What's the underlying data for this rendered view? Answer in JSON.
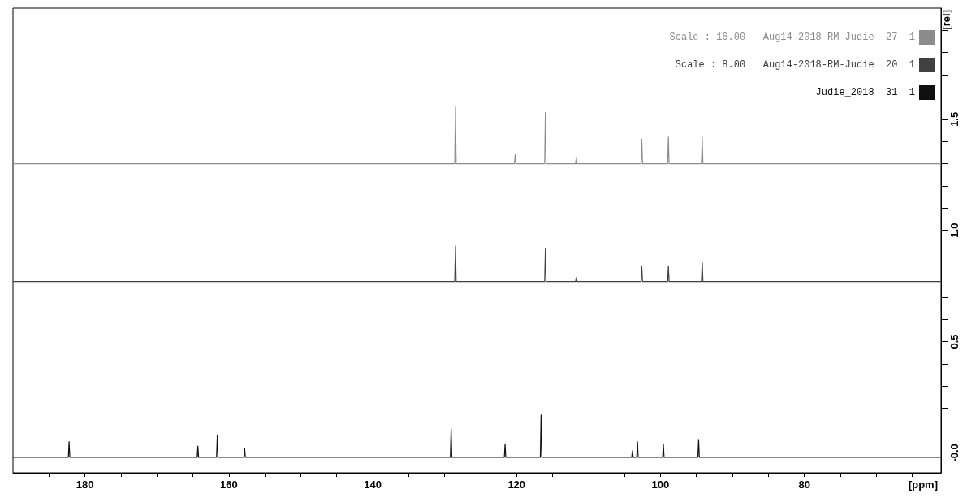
{
  "chart_data": {
    "type": "line",
    "xlabel": "[ppm]",
    "ylabel": "[rel]",
    "xlim": [
      190,
      61
    ],
    "ylim": [
      -0.09,
      2.0
    ],
    "xticks": [
      {
        "value": 185,
        "label": null
      },
      180,
      {
        "value": 175,
        "label": null
      },
      {
        "value": 170,
        "label": null
      },
      {
        "value": 165,
        "label": null
      },
      160,
      {
        "value": 155,
        "label": null
      },
      {
        "value": 150,
        "label": null
      },
      {
        "value": 145,
        "label": null
      },
      140,
      {
        "value": 135,
        "label": null
      },
      {
        "value": 130,
        "label": null
      },
      {
        "value": 125,
        "label": null
      },
      120,
      {
        "value": 115,
        "label": null
      },
      {
        "value": 110,
        "label": null
      },
      {
        "value": 105,
        "label": null
      },
      100,
      {
        "value": 95,
        "label": null
      },
      {
        "value": 90,
        "label": null
      },
      {
        "value": 85,
        "label": null
      },
      80,
      {
        "value": 75,
        "label": null
      },
      {
        "value": 70,
        "label": null
      },
      {
        "value": 65,
        "label": null
      }
    ],
    "yticks": [
      {
        "value": 0,
        "label": "-0.0"
      },
      {
        "value": 0.1,
        "label": null
      },
      {
        "value": 0.2,
        "label": null
      },
      {
        "value": 0.3,
        "label": null
      },
      {
        "value": 0.4,
        "label": null
      },
      0.5,
      {
        "value": 0.6,
        "label": null
      },
      {
        "value": 0.7,
        "label": null
      },
      {
        "value": 0.8,
        "label": null
      },
      {
        "value": 0.9,
        "label": null
      },
      {
        "value": 1,
        "label": "1.0"
      },
      {
        "value": 1.1,
        "label": null
      },
      {
        "value": 1.2,
        "label": null
      },
      {
        "value": 1.3,
        "label": null
      },
      {
        "value": 1.4,
        "label": null
      },
      1.5,
      {
        "value": 1.6,
        "label": null
      },
      {
        "value": 1.7,
        "label": null
      },
      {
        "value": 1.8,
        "label": null
      },
      {
        "value": 1.9,
        "label": null
      }
    ],
    "legend": "top right",
    "marker": "none",
    "line_style": "solid",
    "grid": false,
    "series": [
      {
        "name": "Scale : 16.00   Aug14-2018-RM-Judie  27  1",
        "color": "#8c8c8c",
        "x": [
          190,
          128.6,
          128.5,
          128.4,
          120.3,
          120.2,
          120.1,
          116.1,
          116.0,
          115.9,
          111.8,
          111.7,
          111.6,
          102.7,
          102.6,
          102.5,
          99.0,
          98.9,
          98.8,
          94.3,
          94.2,
          94.1,
          61
        ],
        "values": [
          1.3,
          1.3,
          1.56,
          1.3,
          1.3,
          1.34,
          1.3,
          1.3,
          1.53,
          1.3,
          1.3,
          1.33,
          1.3,
          1.3,
          1.41,
          1.3,
          1.3,
          1.42,
          1.3,
          1.3,
          1.42,
          1.3,
          1.3
        ]
      },
      {
        "name": "Scale : 8.00   Aug14-2018-RM-Judie  20  1",
        "color": "#404040",
        "x": [
          190,
          128.6,
          128.5,
          128.4,
          116.1,
          116.0,
          115.9,
          111.8,
          111.7,
          111.6,
          102.7,
          102.6,
          102.5,
          99.0,
          98.9,
          98.8,
          94.3,
          94.2,
          94.1,
          61
        ],
        "values": [
          0.77,
          0.77,
          0.93,
          0.77,
          0.77,
          0.92,
          0.77,
          0.77,
          0.79,
          0.77,
          0.77,
          0.84,
          0.77,
          0.77,
          0.84,
          0.77,
          0.77,
          0.86,
          0.77,
          0.77
        ]
      },
      {
        "name": "Judie_2018  31  1",
        "color": "#101010",
        "x": [
          190,
          182.3,
          182.2,
          182.1,
          164.4,
          164.3,
          164.2,
          161.7,
          161.6,
          161.5,
          157.9,
          157.8,
          157.7,
          129.2,
          129.1,
          129.0,
          121.7,
          121.6,
          121.5,
          116.7,
          116.6,
          116.5,
          104.0,
          103.9,
          103.8,
          103.3,
          103.2,
          103.1,
          99.7,
          99.6,
          99.5,
          94.8,
          94.7,
          94.6,
          61
        ],
        "values": [
          -0.02,
          -0.02,
          0.05,
          -0.02,
          -0.02,
          0.03,
          -0.02,
          -0.02,
          0.08,
          -0.02,
          -0.02,
          0.02,
          -0.02,
          -0.02,
          0.11,
          -0.02,
          -0.02,
          0.04,
          -0.02,
          -0.02,
          0.17,
          -0.02,
          -0.02,
          0.01,
          -0.02,
          -0.02,
          0.05,
          -0.02,
          -0.02,
          0.04,
          -0.02,
          -0.02,
          0.06,
          -0.02,
          -0.02
        ]
      }
    ]
  }
}
